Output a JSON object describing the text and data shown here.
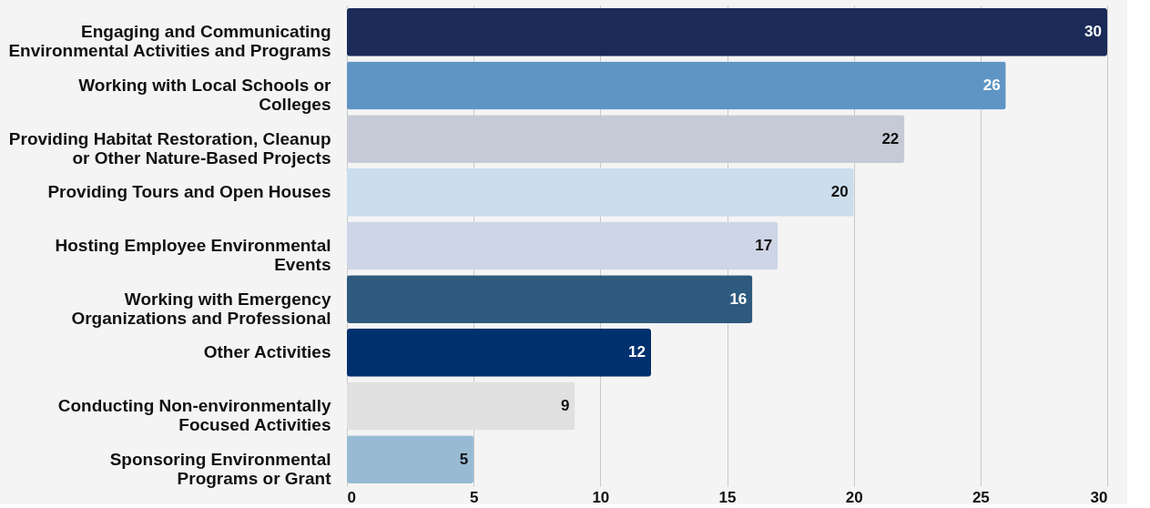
{
  "chart_data": {
    "type": "bar",
    "orientation": "horizontal",
    "categories": [
      "Engaging and Communicating\nEnvironmental Activities and Programs",
      "Working with Local Schools or\nColleges",
      "Providing Habitat Restoration, Cleanup\nor Other Nature-Based Projects",
      "Providing Tours and Open Houses",
      "Hosting Employee Environmental\nEvents",
      "Working with Emergency\nOrganizations and Professional",
      "Other Activities",
      "Conducting Non-environmentally\nFocused Activities",
      "Sponsoring Environmental\nPrograms or Grant"
    ],
    "values": [
      30,
      26,
      22,
      20,
      17,
      16,
      12,
      9,
      5
    ],
    "colors": [
      "#1b2a57",
      "#5f95c5",
      "#c6cad6",
      "#cadeed",
      "#cdd5e6",
      "#2d5a7e",
      "#00306e",
      "#e0e0e0",
      "#98bbd3"
    ],
    "xlim": [
      0,
      30
    ],
    "xticks": [
      0,
      5,
      10,
      15,
      20,
      25,
      30
    ],
    "grid": "x",
    "data_labels": true
  }
}
